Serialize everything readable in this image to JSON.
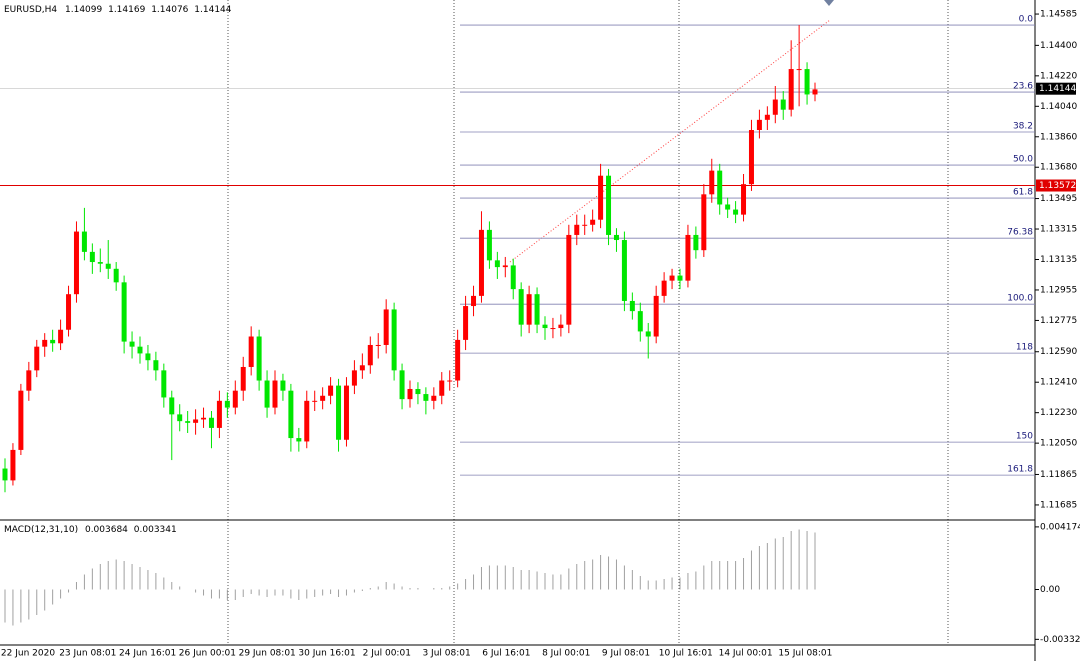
{
  "chart_data": {
    "type": "candlestick",
    "symbol": "EURUSD,H4",
    "header_values": [
      1.14099,
      1.14169,
      1.14076,
      1.14144
    ],
    "up_color": "#ff0000",
    "down_color": "#00e600",
    "ylim": [
      1.11596,
      1.14668
    ],
    "yticks": [
      1.14585,
      {
        "value": 1.144,
        "label": "1.14400"
      },
      {
        "value": 1.1422,
        "label": "1.14220"
      },
      {
        "value": 1.1404,
        "label": "1.14040"
      },
      {
        "value": 1.1386,
        "label": "1.13860"
      },
      {
        "value": 1.1368,
        "label": "1.13680"
      },
      1.13495,
      1.13315,
      1.13135,
      1.12955,
      1.12775,
      {
        "value": 1.1259,
        "label": "1.12590"
      },
      {
        "value": 1.1241,
        "label": "1.12410"
      },
      {
        "value": 1.1223,
        "label": "1.12230"
      },
      {
        "value": 1.1205,
        "label": "1.12050"
      },
      1.11865,
      1.11685
    ],
    "current_price": 1.14144,
    "horizontal_line": 1.13572,
    "fib_levels": [
      {
        "label": "0.0",
        "value": 1.1452
      },
      {
        "label": "23.6",
        "value": 1.14124
      },
      {
        "label": "38.2",
        "value": 1.13888
      },
      {
        "label": "50.0",
        "value": 1.13693
      },
      {
        "label": "61.8",
        "value": 1.13498
      },
      {
        "label": "76.38",
        "value": 1.13261
      },
      {
        "label": "100.0",
        "value": 1.12871
      },
      {
        "label": "118",
        "value": 1.12582
      },
      {
        "label": "150",
        "value": 1.12056
      },
      {
        "label": "161.8",
        "value": 1.11861
      }
    ],
    "candles": [
      [
        1.119,
        1.1196,
        1.1176,
        1.1183
      ],
      [
        1.1183,
        1.1205,
        1.118,
        1.1201
      ],
      [
        1.1201,
        1.124,
        1.1198,
        1.1236
      ],
      [
        1.1236,
        1.1253,
        1.123,
        1.1248
      ],
      [
        1.1248,
        1.1266,
        1.1244,
        1.1262
      ],
      [
        1.1262,
        1.127,
        1.1256,
        1.1266
      ],
      [
        1.1266,
        1.1272,
        1.1259,
        1.1264
      ],
      [
        1.1264,
        1.1278,
        1.126,
        1.1272
      ],
      [
        1.1272,
        1.1298,
        1.1268,
        1.1293
      ],
      [
        1.1293,
        1.1336,
        1.1288,
        1.133
      ],
      [
        1.133,
        1.1344,
        1.1313,
        1.1318
      ],
      [
        1.1318,
        1.1323,
        1.1305,
        1.1312
      ],
      [
        1.1312,
        1.132,
        1.1306,
        1.1311
      ],
      [
        1.1311,
        1.1325,
        1.1302,
        1.1308
      ],
      [
        1.1308,
        1.1312,
        1.1295,
        1.13
      ],
      [
        1.13,
        1.1304,
        1.1258,
        1.1265
      ],
      [
        1.1265,
        1.1271,
        1.1255,
        1.1262
      ],
      [
        1.1262,
        1.1268,
        1.1252,
        1.1258
      ],
      [
        1.1258,
        1.1263,
        1.1248,
        1.1254
      ],
      [
        1.1254,
        1.1259,
        1.1242,
        1.1248
      ],
      [
        1.1248,
        1.1252,
        1.1226,
        1.1232
      ],
      [
        1.1232,
        1.1236,
        1.1195,
        1.1222
      ],
      [
        1.1222,
        1.1228,
        1.1212,
        1.1218
      ],
      [
        1.1218,
        1.1224,
        1.1211,
        1.1217
      ],
      [
        1.1217,
        1.1225,
        1.121,
        1.1219
      ],
      [
        1.1219,
        1.1226,
        1.1214,
        1.122
      ],
      [
        1.122,
        1.1224,
        1.1202,
        1.1214
      ],
      [
        1.1214,
        1.1236,
        1.1208,
        1.123
      ],
      [
        1.123,
        1.1235,
        1.122,
        1.1226
      ],
      [
        1.1226,
        1.1242,
        1.1222,
        1.1236
      ],
      [
        1.1236,
        1.1256,
        1.123,
        1.125
      ],
      [
        1.125,
        1.1274,
        1.1245,
        1.1268
      ],
      [
        1.1268,
        1.1272,
        1.1236,
        1.1242
      ],
      [
        1.1242,
        1.1248,
        1.122,
        1.1226
      ],
      [
        1.1226,
        1.1248,
        1.1222,
        1.1242
      ],
      [
        1.1242,
        1.1246,
        1.123,
        1.1236
      ],
      [
        1.1236,
        1.124,
        1.12,
        1.1208
      ],
      [
        1.1208,
        1.1214,
        1.12,
        1.1206
      ],
      [
        1.1206,
        1.1236,
        1.1202,
        1.123
      ],
      [
        1.123,
        1.1236,
        1.1224,
        1.123
      ],
      [
        1.123,
        1.1238,
        1.1225,
        1.1233
      ],
      [
        1.1233,
        1.1244,
        1.1228,
        1.1239
      ],
      [
        1.1239,
        1.1243,
        1.12,
        1.1207
      ],
      [
        1.1207,
        1.1244,
        1.1203,
        1.1239
      ],
      [
        1.1239,
        1.1254,
        1.1234,
        1.1248
      ],
      [
        1.1248,
        1.1258,
        1.1243,
        1.1251
      ],
      [
        1.1251,
        1.1268,
        1.1246,
        1.1263
      ],
      [
        1.1263,
        1.127,
        1.1255,
        1.1263
      ],
      [
        1.1263,
        1.129,
        1.1258,
        1.1284
      ],
      [
        1.1284,
        1.1288,
        1.1242,
        1.1248
      ],
      [
        1.1248,
        1.1252,
        1.1225,
        1.1231
      ],
      [
        1.1231,
        1.1242,
        1.1226,
        1.1237
      ],
      [
        1.1237,
        1.1241,
        1.1228,
        1.1234
      ],
      [
        1.1234,
        1.1238,
        1.1222,
        1.123
      ],
      [
        1.123,
        1.1238,
        1.1225,
        1.1233
      ],
      [
        1.1233,
        1.1247,
        1.1228,
        1.1242
      ],
      [
        1.1242,
        1.1248,
        1.1236,
        1.1242
      ],
      [
        1.1242,
        1.1272,
        1.1238,
        1.1266
      ],
      [
        1.1266,
        1.1292,
        1.126,
        1.1286
      ],
      [
        1.1286,
        1.1298,
        1.128,
        1.1292
      ],
      [
        1.1292,
        1.1342,
        1.1288,
        1.1331
      ],
      [
        1.1331,
        1.1336,
        1.1308,
        1.1313
      ],
      [
        1.1313,
        1.1318,
        1.1302,
        1.1309
      ],
      [
        1.1309,
        1.1315,
        1.1303,
        1.131
      ],
      [
        1.131,
        1.1314,
        1.129,
        1.1296
      ],
      [
        1.1296,
        1.13,
        1.1268,
        1.1275
      ],
      [
        1.1275,
        1.1298,
        1.127,
        1.1293
      ],
      [
        1.1293,
        1.1297,
        1.127,
        1.1275
      ],
      [
        1.1275,
        1.128,
        1.1266,
        1.1273
      ],
      [
        1.1273,
        1.1279,
        1.1267,
        1.1273
      ],
      [
        1.1273,
        1.1281,
        1.1268,
        1.1275
      ],
      [
        1.1275,
        1.1334,
        1.127,
        1.1328
      ],
      [
        1.1328,
        1.134,
        1.1322,
        1.1334
      ],
      [
        1.1334,
        1.134,
        1.1328,
        1.1334
      ],
      [
        1.1334,
        1.1343,
        1.133,
        1.1337
      ],
      [
        1.1337,
        1.137,
        1.1332,
        1.1363
      ],
      [
        1.1363,
        1.1367,
        1.1322,
        1.1328
      ],
      [
        1.1328,
        1.1332,
        1.1318,
        1.1325
      ],
      [
        1.1325,
        1.133,
        1.1283,
        1.1289
      ],
      [
        1.1289,
        1.1294,
        1.1278,
        1.1283
      ],
      [
        1.1283,
        1.1288,
        1.1265,
        1.1271
      ],
      [
        1.1271,
        1.1276,
        1.1255,
        1.1268
      ],
      [
        1.1268,
        1.1298,
        1.1264,
        1.1292
      ],
      [
        1.1292,
        1.1306,
        1.1288,
        1.1301
      ],
      [
        1.1301,
        1.1308,
        1.1296,
        1.1304
      ],
      [
        1.1304,
        1.1308,
        1.1296,
        1.1301
      ],
      [
        1.1301,
        1.1334,
        1.1297,
        1.1328
      ],
      [
        1.1328,
        1.1333,
        1.1314,
        1.1319
      ],
      [
        1.1319,
        1.1358,
        1.1315,
        1.1352
      ],
      [
        1.1352,
        1.1373,
        1.1347,
        1.1366
      ],
      [
        1.1366,
        1.137,
        1.134,
        1.1346
      ],
      [
        1.1346,
        1.135,
        1.1338,
        1.1343
      ],
      [
        1.1343,
        1.1348,
        1.1335,
        1.134
      ],
      [
        1.134,
        1.1364,
        1.1336,
        1.1358
      ],
      [
        1.1358,
        1.1396,
        1.1354,
        1.139
      ],
      [
        1.139,
        1.1402,
        1.1385,
        1.1396
      ],
      [
        1.1396,
        1.1404,
        1.139,
        1.1399
      ],
      [
        1.1399,
        1.1416,
        1.1394,
        1.1408
      ],
      [
        1.1408,
        1.1413,
        1.1396,
        1.1402
      ],
      [
        1.1402,
        1.1443,
        1.1398,
        1.1426
      ],
      [
        1.1426,
        1.1452,
        1.1404,
        1.1426
      ],
      [
        1.1426,
        1.143,
        1.1405,
        1.1411
      ],
      [
        1.1411,
        1.1418,
        1.1407,
        1.1414
      ]
    ],
    "time_labels": [
      "22 Jun 2020",
      "23 Jun 08:01",
      "24 Jun 16:01",
      "26 Jun 00:01",
      "29 Jun 08:01",
      "30 Jun 16:01",
      "2 Jul 00:01",
      "3 Jul 08:01",
      "6 Jul 16:01",
      "8 Jul 00:01",
      "9 Jul 08:01",
      "10 Jul 16:01",
      "14 Jul 00:01",
      "15 Jul 08:01"
    ],
    "macd": {
      "name": "MACD(12,31,10)",
      "header_values": [
        0.003684,
        0.003341
      ],
      "ylim": [
        -0.0037,
        0.0045
      ],
      "yticks": [
        0.004174,
        {
          "value": 0,
          "label": "0.00"
        },
        -0.003323
      ],
      "color": "#a0a0a0",
      "values": [
        -0.0022,
        -0.0024,
        -0.0022,
        -0.002,
        -0.0017,
        -0.0014,
        -0.001,
        -0.0006,
        -0.0002,
        0.0005,
        0.001,
        0.0014,
        0.0017,
        0.0019,
        0.002,
        0.0019,
        0.0017,
        0.0015,
        0.0013,
        0.0011,
        0.0008,
        0.0005,
        0.0002,
        0.0,
        -0.0002,
        -0.0004,
        -0.0006,
        -0.0006,
        -0.0007,
        -0.0007,
        -0.0005,
        -0.0003,
        -0.0004,
        -0.0005,
        -0.0004,
        -0.0004,
        -0.0006,
        -0.0007,
        -0.0006,
        -0.0005,
        -0.0004,
        -0.0003,
        -0.0005,
        -0.0004,
        -0.0002,
        -0.0001,
        0.0001,
        0.0002,
        0.0005,
        0.0004,
        0.0002,
        0.0001,
        0.0001,
        0.0,
        0.0001,
        0.0001,
        0.0002,
        0.0004,
        0.0007,
        0.001,
        0.0015,
        0.0016,
        0.0016,
        0.0016,
        0.0015,
        0.0013,
        0.0013,
        0.0012,
        0.0011,
        0.001,
        0.001,
        0.0014,
        0.0017,
        0.0019,
        0.002,
        0.0023,
        0.0022,
        0.002,
        0.0016,
        0.0013,
        0.0009,
        0.0006,
        0.0006,
        0.0007,
        0.0008,
        0.0008,
        0.0011,
        0.0012,
        0.0016,
        0.0019,
        0.0019,
        0.0019,
        0.0019,
        0.0021,
        0.0026,
        0.0029,
        0.0031,
        0.0034,
        0.0035,
        0.0039,
        0.004,
        0.0039,
        0.0038
      ]
    }
  }
}
